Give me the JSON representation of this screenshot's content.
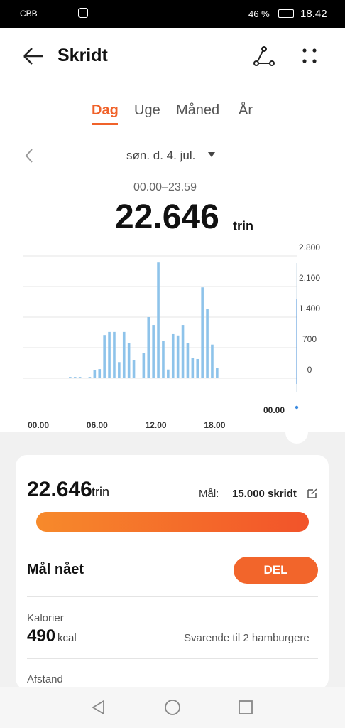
{
  "status_bar": {
    "carrier": "CBB",
    "battery": "46 %",
    "time": "18.42"
  },
  "header": {
    "title": "Skridt"
  },
  "tabs": [
    "Dag",
    "Uge",
    "Måned",
    "År"
  ],
  "date": "søn. d. 4. jul.",
  "range": "00.00–23.59",
  "total": {
    "value": "22.646",
    "unit": "trin"
  },
  "chart_data": {
    "type": "bar",
    "color": "#8ec3ea",
    "categories": [
      "00.00",
      null,
      null,
      null,
      null,
      null,
      null,
      null,
      null,
      null,
      null,
      null,
      "06.00",
      null,
      null,
      null,
      null,
      null,
      null,
      null,
      null,
      null,
      null,
      null,
      "12.00",
      null,
      null,
      null,
      null,
      null,
      null,
      null,
      null,
      null,
      null,
      null,
      "18.00",
      null,
      null,
      null,
      null,
      null,
      null,
      null,
      null,
      null,
      null,
      null
    ],
    "values": [
      0,
      0,
      0,
      0,
      0,
      0,
      30,
      30,
      30,
      0,
      30,
      180,
      210,
      990,
      1060,
      1060,
      370,
      1060,
      800,
      410,
      0,
      570,
      1400,
      1220,
      2650,
      850,
      200,
      1010,
      980,
      1220,
      800,
      470,
      440,
      2080,
      1580,
      770,
      240,
      0,
      0,
      0,
      0,
      0,
      0,
      0,
      0,
      0,
      0,
      0
    ],
    "ylim": [
      0,
      2800
    ],
    "yticks": [
      0,
      700,
      {
        "value": 1400,
        "label": "1.400"
      },
      {
        "value": 2100,
        "label": "2.100"
      },
      {
        "value": 2800,
        "label": "2.800"
      }
    ],
    "grid": true,
    "marker_label": "00.00"
  },
  "card": {
    "total": "22.646",
    "unit": "trin",
    "goal_label": "Mål:",
    "goal": "15.000 skridt",
    "goal_reached": "Mål nået",
    "share_button": "DEL",
    "calories_label": "Kalorier",
    "calories": "490",
    "calories_unit": "kcal",
    "calories_note": "Svarende til 2 hamburgere",
    "distance_label": "Afstand"
  }
}
